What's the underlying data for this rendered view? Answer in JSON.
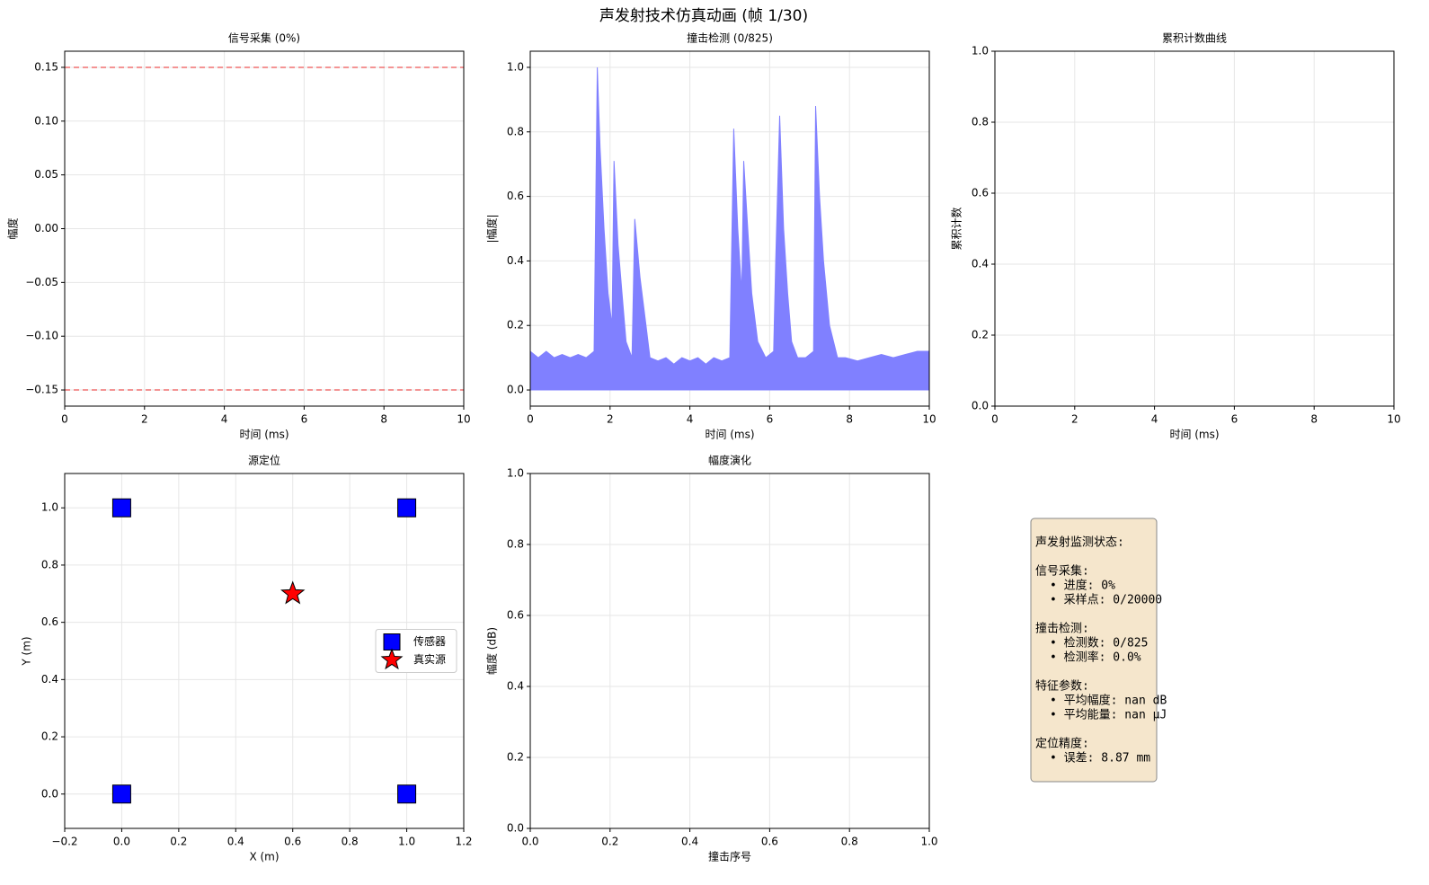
{
  "title": "声发射技术仿真动画 (帧 1/30)",
  "chart_data": [
    {
      "type": "line",
      "title": "信号采集 (0%)",
      "xlabel": "时间 (ms)",
      "ylabel": "幅度",
      "xlim": [
        0,
        10
      ],
      "ylim": [
        -0.165,
        0.165
      ],
      "xticks": [
        0,
        2,
        4,
        6,
        8,
        10
      ],
      "yticks": [
        {
          "value": -0.15,
          "label": "−0.15"
        },
        {
          "value": -0.1,
          "label": "−0.10"
        },
        {
          "value": -0.05,
          "label": "−0.05"
        },
        {
          "value": 0,
          "label": "0.00"
        },
        {
          "value": 0.05,
          "label": "0.05"
        },
        {
          "value": 0.1,
          "label": "0.10"
        },
        {
          "value": 0.15,
          "label": "0.15"
        }
      ],
      "thresholds": {
        "values": [
          0.15,
          -0.15
        ],
        "color": "#f07070"
      },
      "grid": true
    },
    {
      "type": "area",
      "title": "撞击检测 (0/825)",
      "xlabel": "时间 (ms)",
      "ylabel": "|幅度|",
      "xlim": [
        0,
        10
      ],
      "ylim": [
        -0.05,
        1.05
      ],
      "xticks": [
        0,
        2,
        4,
        6,
        8,
        10
      ],
      "yticks": [
        {
          "value": 0,
          "label": "0.0"
        },
        {
          "value": 0.2,
          "label": "0.2"
        },
        {
          "value": 0.4,
          "label": "0.4"
        },
        {
          "value": 0.6,
          "label": "0.6"
        },
        {
          "value": 0.8,
          "label": "0.8"
        },
        {
          "value": 1,
          "label": "1.0"
        }
      ],
      "grid": true,
      "series": [
        {
          "color": "#8080ff",
          "x": [
            0,
            0.2,
            0.4,
            0.6,
            0.8,
            1.0,
            1.2,
            1.4,
            1.6,
            1.68,
            1.75,
            1.85,
            1.95,
            2.05,
            2.1,
            2.2,
            2.3,
            2.4,
            2.55,
            2.62,
            2.75,
            2.9,
            3.0,
            3.2,
            3.4,
            3.6,
            3.8,
            4.0,
            4.2,
            4.4,
            4.6,
            4.8,
            5.0,
            5.1,
            5.2,
            5.3,
            5.35,
            5.45,
            5.55,
            5.7,
            5.9,
            6.1,
            6.15,
            6.25,
            6.35,
            6.45,
            6.55,
            6.7,
            6.9,
            7.1,
            7.15,
            7.25,
            7.35,
            7.5,
            7.7,
            7.9,
            8.2,
            8.5,
            8.8,
            9.1,
            9.4,
            9.7,
            10
          ],
          "values": [
            0.12,
            0.1,
            0.12,
            0.1,
            0.11,
            0.1,
            0.11,
            0.1,
            0.12,
            1.0,
            0.75,
            0.5,
            0.3,
            0.2,
            0.71,
            0.45,
            0.3,
            0.15,
            0.1,
            0.53,
            0.35,
            0.2,
            0.1,
            0.09,
            0.1,
            0.08,
            0.1,
            0.09,
            0.1,
            0.08,
            0.1,
            0.09,
            0.1,
            0.81,
            0.5,
            0.3,
            0.71,
            0.5,
            0.3,
            0.15,
            0.1,
            0.12,
            0.4,
            0.85,
            0.5,
            0.3,
            0.15,
            0.1,
            0.1,
            0.12,
            0.88,
            0.6,
            0.4,
            0.2,
            0.1,
            0.1,
            0.09,
            0.1,
            0.11,
            0.1,
            0.11,
            0.12,
            0.12
          ]
        }
      ]
    },
    {
      "type": "line",
      "title": "累积计数曲线",
      "xlabel": "时间 (ms)",
      "ylabel": "累积计数",
      "xlim": [
        0,
        10
      ],
      "ylim": [
        0,
        1
      ],
      "xticks": [
        0,
        2,
        4,
        6,
        8,
        10
      ],
      "yticks": [
        {
          "value": 0,
          "label": "0.0"
        },
        {
          "value": 0.2,
          "label": "0.2"
        },
        {
          "value": 0.4,
          "label": "0.4"
        },
        {
          "value": 0.6,
          "label": "0.6"
        },
        {
          "value": 0.8,
          "label": "0.8"
        },
        {
          "value": 1,
          "label": "1.0"
        }
      ],
      "grid": true
    },
    {
      "type": "scatter",
      "title": "源定位",
      "xlabel": "X (m)",
      "ylabel": "Y (m)",
      "xlim": [
        -0.2,
        1.2
      ],
      "ylim": [
        -0.12,
        1.12
      ],
      "xticks": [
        {
          "value": -0.2,
          "label": "−0.2"
        },
        {
          "value": 0,
          "label": "0.0"
        },
        {
          "value": 0.2,
          "label": "0.2"
        },
        {
          "value": 0.4,
          "label": "0.4"
        },
        {
          "value": 0.6,
          "label": "0.6"
        },
        {
          "value": 0.8,
          "label": "0.8"
        },
        {
          "value": 1,
          "label": "1.0"
        },
        {
          "value": 1.2,
          "label": "1.2"
        }
      ],
      "yticks": [
        {
          "value": 0,
          "label": "0.0"
        },
        {
          "value": 0.2,
          "label": "0.2"
        },
        {
          "value": 0.4,
          "label": "0.4"
        },
        {
          "value": 0.6,
          "label": "0.6"
        },
        {
          "value": 0.8,
          "label": "0.8"
        },
        {
          "value": 1,
          "label": "1.0"
        }
      ],
      "grid": true,
      "legend": "center right",
      "series": [
        {
          "name": "传感器",
          "color": "#0000ff",
          "marker": "square",
          "x": [
            0,
            1,
            0,
            1
          ],
          "values": [
            0,
            0,
            1,
            1
          ]
        },
        {
          "name": "真实源",
          "color": "#ff0000",
          "marker": "star",
          "x": [
            0.6
          ],
          "values": [
            0.7
          ]
        }
      ]
    },
    {
      "type": "line",
      "title": "幅度演化",
      "xlabel": "撞击序号",
      "ylabel": "幅度 (dB)",
      "xlim": [
        0,
        1
      ],
      "ylim": [
        0,
        1
      ],
      "xticks": [
        {
          "value": 0,
          "label": "0.0"
        },
        {
          "value": 0.2,
          "label": "0.2"
        },
        {
          "value": 0.4,
          "label": "0.4"
        },
        {
          "value": 0.6,
          "label": "0.6"
        },
        {
          "value": 0.8,
          "label": "0.8"
        },
        {
          "value": 1,
          "label": "1.0"
        }
      ],
      "yticks": [
        {
          "value": 0,
          "label": "0.0"
        },
        {
          "value": 0.2,
          "label": "0.2"
        },
        {
          "value": 0.4,
          "label": "0.4"
        },
        {
          "value": 0.6,
          "label": "0.6"
        },
        {
          "value": 0.8,
          "label": "0.8"
        },
        {
          "value": 1,
          "label": "1.0"
        }
      ],
      "grid": true
    }
  ],
  "info_box": {
    "title": "声发射监测状态:",
    "sections": [
      {
        "heading": "信号采集:",
        "items": [
          "• 进度: 0%",
          "• 采样点: 0/20000"
        ]
      },
      {
        "heading": "撞击检测:",
        "items": [
          "• 检测数: 0/825",
          "• 检测率: 0.0%"
        ]
      },
      {
        "heading": "特征参数:",
        "items": [
          "• 平均幅度: nan dB",
          "• 平均能量: nan μJ"
        ]
      },
      {
        "heading": "定位精度:",
        "items": [
          "• 误差: 8.87 mm"
        ]
      }
    ]
  }
}
